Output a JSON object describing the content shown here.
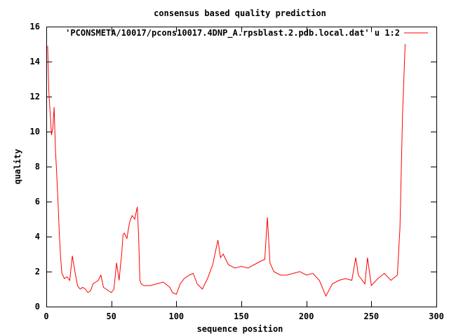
{
  "chart_data": {
    "type": "line",
    "title": "consensus based quality prediction",
    "xlabel": "sequence position",
    "ylabel": "quality",
    "xlim": [
      0,
      300
    ],
    "ylim": [
      0,
      16
    ],
    "x_ticks": [
      "0",
      "50",
      "100",
      "150",
      "200",
      "250",
      "300"
    ],
    "y_ticks": [
      "0",
      "2",
      "4",
      "6",
      "8",
      "10",
      "12",
      "14",
      "16"
    ],
    "grid": false,
    "legend_position": "top-right",
    "series": [
      {
        "name": "'PCONSMETA/10017/pcons10017.4DNP_A.rpsblast.2.pdb.local.dat' u 1:2",
        "color": "#ff0000",
        "x": [
          1,
          2,
          3,
          4,
          5,
          6,
          7,
          8,
          9,
          10,
          11,
          12,
          14,
          16,
          18,
          20,
          22,
          24,
          26,
          28,
          30,
          32,
          34,
          36,
          38,
          40,
          42,
          44,
          46,
          48,
          50,
          52,
          54,
          56,
          57,
          58,
          59,
          60,
          62,
          64,
          66,
          68,
          70,
          71,
          72,
          73,
          75,
          80,
          85,
          90,
          95,
          97,
          100,
          103,
          106,
          110,
          113,
          116,
          120,
          124,
          128,
          130,
          132,
          134,
          136,
          140,
          145,
          150,
          155,
          160,
          165,
          168,
          170,
          172,
          175,
          180,
          185,
          190,
          195,
          200,
          205,
          210,
          215,
          220,
          225,
          230,
          235,
          238,
          240,
          242,
          245,
          247,
          250,
          255,
          260,
          265,
          270,
          272,
          274,
          276
        ],
        "y": [
          14.9,
          12.2,
          11.0,
          9.8,
          10.2,
          11.4,
          9.0,
          7.6,
          6.0,
          4.2,
          2.8,
          1.9,
          1.6,
          1.7,
          1.5,
          2.9,
          2.0,
          1.2,
          1.0,
          1.1,
          1.0,
          0.8,
          0.9,
          1.3,
          1.4,
          1.5,
          1.8,
          1.1,
          1.0,
          0.9,
          0.8,
          1.0,
          2.5,
          1.5,
          2.3,
          3.0,
          4.1,
          4.2,
          3.9,
          4.8,
          5.2,
          5.0,
          5.7,
          4.0,
          1.5,
          1.3,
          1.2,
          1.2,
          1.3,
          1.4,
          1.1,
          0.8,
          0.7,
          1.3,
          1.6,
          1.8,
          1.9,
          1.3,
          1.0,
          1.6,
          2.4,
          3.1,
          3.8,
          2.8,
          3.0,
          2.4,
          2.2,
          2.3,
          2.2,
          2.4,
          2.6,
          2.7,
          5.1,
          2.5,
          2.0,
          1.8,
          1.8,
          1.9,
          2.0,
          1.8,
          1.9,
          1.5,
          0.6,
          1.3,
          1.5,
          1.6,
          1.5,
          2.8,
          1.8,
          1.6,
          1.3,
          2.8,
          1.2,
          1.6,
          1.9,
          1.5,
          1.8,
          4.5,
          11.0,
          15.0
        ]
      }
    ]
  }
}
